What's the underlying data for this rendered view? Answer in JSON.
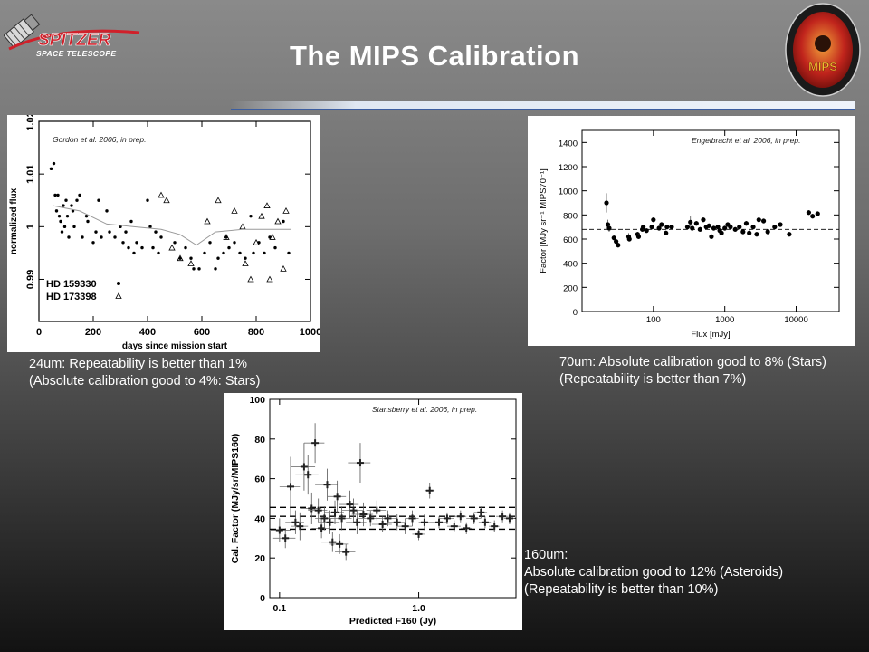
{
  "slide": {
    "title": "The MIPS Calibration",
    "logos": {
      "spitzer_word": "SPITZER",
      "spitzer_sub": "SPACE TELESCOPE",
      "mips_word": "MIPS"
    }
  },
  "colors": {
    "title": "#ffffff",
    "caption": "#ffffff",
    "spitzer_red": "#d0202a",
    "mips_badge": "#c0241c"
  },
  "captions": {
    "c24": [
      "24um: Repeatability is better than 1%",
      "(Absolute calibration good to 4%: Stars)"
    ],
    "c70": [
      "70um: Absolute calibration good to 8% (Stars)",
      "(Repeatability is better than 7%)"
    ],
    "c160": [
      "160um:",
      "Absolute calibration good to 12% (Asteroids)",
      "(Repeatability is better than 10%)"
    ]
  },
  "chart_data": [
    {
      "id": "mips24",
      "type": "scatter",
      "citation": "Gordon et al. 2006, in prep.",
      "xlabel": "days since mission start",
      "ylabel": "normalized flux",
      "xlim": [
        0,
        1000
      ],
      "ylim": [
        0.982,
        1.02
      ],
      "xticks": [
        "0",
        "200",
        "400",
        "600",
        "800",
        "1000"
      ],
      "yticks": [
        "0.99",
        "1",
        "1.01",
        "1.02"
      ],
      "legend": [
        "HD 159330",
        "HD 173398"
      ],
      "series": [
        {
          "name": "HD 159330",
          "marker": "dot",
          "x": [
            45,
            55,
            60,
            65,
            70,
            75,
            80,
            85,
            90,
            95,
            100,
            105,
            110,
            120,
            125,
            130,
            140,
            150,
            160,
            175,
            180,
            200,
            210,
            220,
            230,
            250,
            260,
            280,
            300,
            310,
            320,
            330,
            340,
            350,
            360,
            380,
            400,
            410,
            420,
            430,
            440,
            450,
            500,
            520,
            540,
            560,
            570,
            590,
            610,
            630,
            650,
            660,
            680,
            690,
            700,
            720,
            740,
            760,
            780,
            790,
            810,
            830,
            850,
            870,
            900,
            920
          ],
          "y": [
            1.011,
            1.012,
            1.006,
            1.003,
            1.006,
            1.002,
            1.001,
            0.999,
            1.004,
            1.0,
            1.005,
            1.002,
            0.998,
            1.004,
            1.003,
            1.0,
            1.005,
            1.006,
            0.998,
            1.002,
            1.001,
            0.997,
            0.999,
            1.005,
            0.998,
            1.003,
            0.999,
            0.998,
            1.0,
            0.997,
            0.999,
            0.996,
            1.001,
            0.995,
            0.997,
            0.996,
            1.005,
            1.0,
            0.996,
            0.999,
            0.995,
            0.998,
            0.997,
            0.994,
            0.996,
            0.994,
            0.992,
            0.992,
            0.995,
            0.997,
            0.992,
            0.994,
            0.995,
            0.998,
            0.996,
            0.997,
            0.995,
            0.994,
            1.002,
            0.995,
            0.997,
            0.995,
            0.998,
            0.996,
            1.001,
            0.995
          ]
        },
        {
          "name": "HD 173398",
          "marker": "triangle",
          "x": [
            450,
            470,
            490,
            520,
            560,
            620,
            660,
            690,
            720,
            750,
            760,
            780,
            800,
            820,
            840,
            850,
            860,
            880,
            900,
            910
          ],
          "y": [
            1.006,
            1.005,
            0.996,
            0.994,
            0.993,
            1.001,
            1.005,
            0.998,
            1.003,
            1.0,
            0.993,
            0.99,
            0.997,
            1.002,
            1.004,
            0.99,
            0.998,
            1.001,
            0.992,
            1.003
          ]
        },
        {
          "name": "fit",
          "marker": "line",
          "x": [
            50,
            150,
            250,
            350,
            450,
            520,
            580,
            650,
            750,
            850,
            930
          ],
          "y": [
            1.004,
            1.003,
            1.0005,
            1.0,
            0.9995,
            0.9985,
            0.9965,
            0.999,
            0.9995,
            0.9995,
            0.9995
          ]
        }
      ]
    },
    {
      "id": "mips70",
      "type": "scatter",
      "citation": "Engelbracht et al. 2006, in prep.",
      "xlabel": "Flux [mJy]",
      "ylabel": "Factor [MJy sr⁻¹ MIPS70⁻¹]",
      "xscale": "log",
      "xlim": [
        10,
        40000
      ],
      "ylim": [
        0,
        1500
      ],
      "xticks": [
        "100",
        "1000",
        "10000"
      ],
      "yticks": [
        "0",
        "200",
        "400",
        "600",
        "800",
        "1000",
        "1200",
        "1400"
      ],
      "hline": 680,
      "series": [
        {
          "name": "",
          "marker": "dot",
          "x": [
            22,
            23,
            24,
            28,
            30,
            32,
            45,
            46,
            60,
            62,
            70,
            72,
            80,
            95,
            100,
            120,
            130,
            150,
            155,
            180,
            300,
            330,
            350,
            400,
            450,
            500,
            550,
            600,
            650,
            700,
            800,
            850,
            900,
            1000,
            1100,
            1200,
            1400,
            1600,
            1800,
            2000,
            2200,
            2500,
            2800,
            3000,
            3500,
            4000,
            5000,
            6000,
            8000,
            15000,
            17000,
            20000
          ],
          "y": [
            900,
            720,
            690,
            610,
            580,
            550,
            620,
            600,
            640,
            620,
            680,
            700,
            670,
            700,
            760,
            690,
            720,
            650,
            700,
            700,
            700,
            740,
            690,
            730,
            680,
            760,
            700,
            710,
            620,
            690,
            700,
            670,
            650,
            690,
            720,
            700,
            680,
            700,
            660,
            730,
            650,
            700,
            640,
            760,
            750,
            660,
            700,
            720,
            640,
            820,
            790,
            810
          ],
          "yerr": [
            80,
            40,
            30,
            20,
            20,
            20,
            30,
            20,
            20,
            20,
            20,
            20,
            20,
            20,
            20,
            20,
            20,
            20,
            20,
            20,
            20,
            50,
            20,
            20,
            20,
            20,
            20,
            20,
            20,
            20,
            20,
            20,
            20,
            20,
            20,
            20,
            20,
            20,
            20,
            20,
            20,
            20,
            20,
            20,
            20,
            20,
            20,
            20,
            20,
            20,
            20,
            20
          ]
        }
      ]
    },
    {
      "id": "mips160",
      "type": "scatter",
      "citation": "Stansberry et al. 2006, in prep.",
      "xlabel": "Predicted F160 (Jy)",
      "ylabel": "Cal. Factor (MJy/sr/MIPS160)",
      "xscale": "log",
      "xlim": [
        0.085,
        5
      ],
      "ylim": [
        0,
        100
      ],
      "xticks": [
        "0.1",
        "1.0"
      ],
      "yticks": [
        "0",
        "20",
        "40",
        "60",
        "80",
        "100"
      ],
      "hlines": [
        34.5,
        41.0,
        45.5
      ],
      "series": [
        {
          "name": "",
          "marker": "cross",
          "x": [
            0.1,
            0.11,
            0.12,
            0.13,
            0.14,
            0.15,
            0.16,
            0.17,
            0.18,
            0.19,
            0.2,
            0.21,
            0.22,
            0.23,
            0.24,
            0.25,
            0.26,
            0.27,
            0.28,
            0.3,
            0.32,
            0.34,
            0.36,
            0.38,
            0.4,
            0.45,
            0.5,
            0.55,
            0.6,
            0.7,
            0.8,
            0.9,
            1.0,
            1.1,
            1.2,
            1.4,
            1.6,
            1.8,
            2.0,
            2.2,
            2.5,
            2.8,
            3.0,
            3.5,
            4.0,
            4.5
          ],
          "y": [
            34,
            30,
            56,
            38,
            36,
            66,
            62,
            45,
            78,
            44,
            35,
            40,
            57,
            38,
            28,
            43,
            51,
            27,
            40,
            23,
            47,
            44,
            38,
            68,
            42,
            40,
            44,
            37,
            40,
            38,
            36,
            40,
            32,
            38,
            54,
            38,
            40,
            36,
            41,
            35,
            40,
            43,
            38,
            36,
            41,
            40
          ],
          "xerr": [
            0.02,
            0.02,
            0.02,
            0.02,
            0.02,
            0.03,
            0.03,
            0.03,
            0.03,
            0.03,
            0.03,
            0.03,
            0.04,
            0.04,
            0.04,
            0.04,
            0.04,
            0.04,
            0.05,
            0.05,
            0.05,
            0.06,
            0.06,
            0.07,
            0.07,
            0.08,
            0.08,
            0.09,
            0.1,
            0.1,
            0.1,
            0.1,
            0.1,
            0.1,
            0.1,
            0.2,
            0.2,
            0.2,
            0.2,
            0.2,
            0.3,
            0.3,
            0.3,
            0.3,
            0.4,
            0.4
          ],
          "yerr": [
            6,
            5,
            15,
            6,
            7,
            12,
            10,
            8,
            10,
            6,
            5,
            6,
            8,
            6,
            5,
            6,
            8,
            5,
            6,
            4,
            7,
            6,
            6,
            10,
            6,
            4,
            5,
            4,
            4,
            4,
            4,
            4,
            3,
            4,
            4,
            3,
            3,
            3,
            3,
            3,
            3,
            3,
            3,
            3,
            3,
            3
          ]
        }
      ]
    }
  ]
}
